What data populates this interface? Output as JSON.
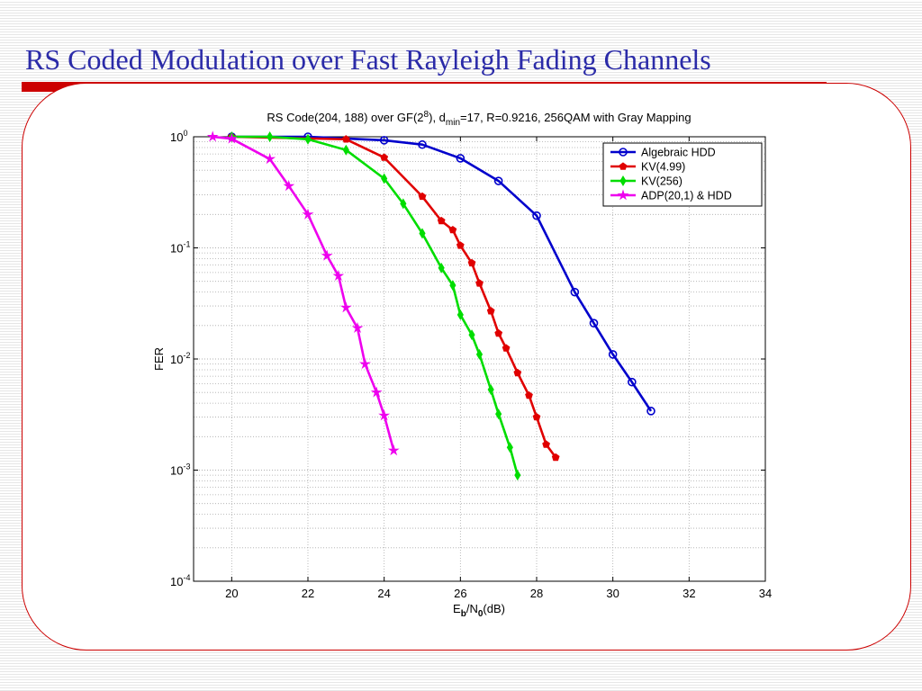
{
  "slide": {
    "title": "RS Coded Modulation over Fast Rayleigh Fading Channels"
  },
  "chart_data": {
    "type": "line",
    "title": {
      "prefix": "RS Code(204, 188) over GF(2",
      "sup": "8",
      "mid": "), d",
      "sub": "min",
      "suffix": "=17, R=0.9216, 256QAM with Gray Mapping"
    },
    "xlabel": {
      "main": "E",
      "sub1": "b",
      "mid": "/N",
      "sub2": "0",
      "suffix": "(dB)"
    },
    "ylabel": "FER",
    "xlim": [
      19,
      34
    ],
    "ylim": [
      0.0001,
      1
    ],
    "yscale": "log",
    "x_ticks": [
      20,
      22,
      24,
      26,
      28,
      30,
      32,
      34
    ],
    "y_ticks": [
      {
        "value": 1,
        "base": "10",
        "exp": "0"
      },
      {
        "value": 0.1,
        "base": "10",
        "exp": "-1"
      },
      {
        "value": 0.01,
        "base": "10",
        "exp": "-2"
      },
      {
        "value": 0.001,
        "base": "10",
        "exp": "-3"
      },
      {
        "value": 0.0001,
        "base": "10",
        "exp": "-4"
      }
    ],
    "grid": true,
    "legend_position": "top-right",
    "series": [
      {
        "name": "Algebraic HDD",
        "color": "#0000cc",
        "marker": "circle",
        "x": [
          20,
          22,
          24,
          25,
          26,
          27,
          28,
          29,
          29.5,
          30,
          30.5,
          31
        ],
        "y": [
          1,
          1,
          0.93,
          0.85,
          0.64,
          0.4,
          0.195,
          0.04,
          0.021,
          0.011,
          0.0062,
          0.0034
        ]
      },
      {
        "name": "KV(4.99)",
        "color": "#e00000",
        "marker": "pentagon",
        "x": [
          20,
          23,
          24,
          25,
          25.5,
          25.8,
          26,
          26.3,
          26.5,
          26.8,
          27,
          27.2,
          27.5,
          27.8,
          28,
          28.25,
          28.5
        ],
        "y": [
          1,
          0.95,
          0.65,
          0.29,
          0.175,
          0.145,
          0.105,
          0.073,
          0.048,
          0.027,
          0.017,
          0.0125,
          0.0075,
          0.0047,
          0.003,
          0.0017,
          0.0013
        ]
      },
      {
        "name": "KV(256)",
        "color": "#00dd00",
        "marker": "diamond",
        "x": [
          20,
          21,
          22,
          23,
          24,
          24.5,
          25,
          25.5,
          25.8,
          26,
          26.3,
          26.5,
          26.8,
          27,
          27.3,
          27.5
        ],
        "y": [
          1,
          1,
          0.95,
          0.76,
          0.42,
          0.25,
          0.135,
          0.066,
          0.046,
          0.025,
          0.0165,
          0.011,
          0.0053,
          0.0032,
          0.0016,
          0.0009
        ]
      },
      {
        "name": "ADP(20,1) & HDD",
        "color": "#ee00ee",
        "marker": "star",
        "x": [
          19.5,
          20,
          21,
          21.5,
          22,
          22.5,
          22.8,
          23,
          23.3,
          23.5,
          23.8,
          24,
          24.25
        ],
        "y": [
          1,
          0.96,
          0.63,
          0.36,
          0.2,
          0.085,
          0.056,
          0.029,
          0.019,
          0.009,
          0.005,
          0.0031,
          0.0015
        ]
      }
    ]
  }
}
